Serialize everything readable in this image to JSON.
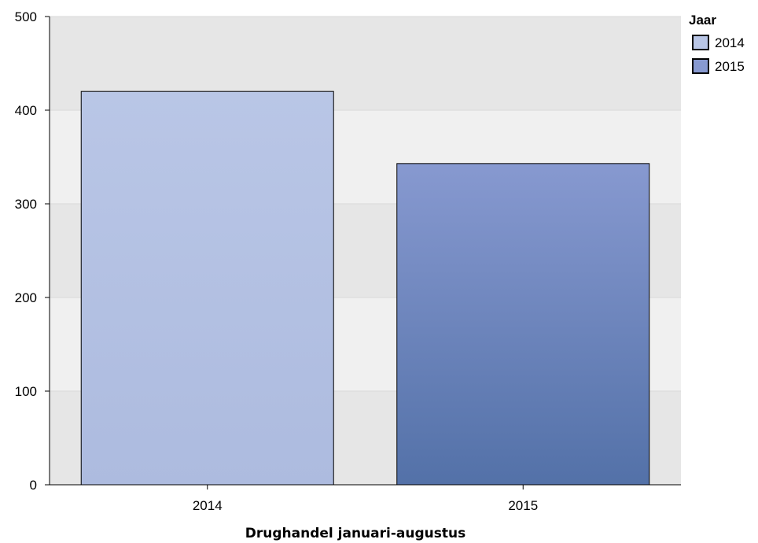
{
  "chart_data": {
    "type": "bar",
    "categories": [
      "2014",
      "2015"
    ],
    "values": [
      420,
      343
    ],
    "xlabel": "Drughandel januari-augustus",
    "ylabel": "",
    "ylim": [
      0,
      500
    ],
    "yticks": [
      0,
      100,
      200,
      300,
      400,
      500
    ],
    "grid": true,
    "legend": {
      "title": "Jaar",
      "placement": "top-right",
      "entries": [
        "2014",
        "2015"
      ]
    },
    "colors": {
      "2014": [
        "#b9c6e6",
        "#adbbdf"
      ],
      "2015": [
        "#8799d0",
        "#5371a8"
      ],
      "band_dark": "#e6e6e6",
      "band_light": "#f0f0f0"
    }
  }
}
